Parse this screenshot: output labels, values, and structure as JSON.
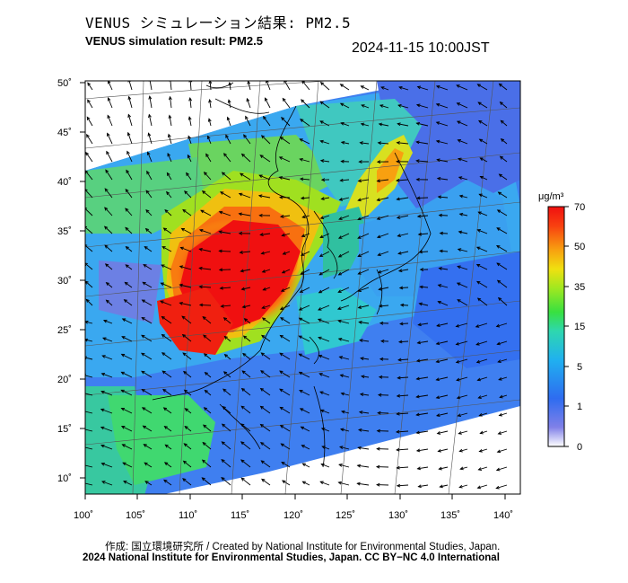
{
  "header": {
    "title_jp": "VENUS シミュレーション結果: PM2.5",
    "title_en": "VENUS simulation result: PM2.5",
    "timestamp": "2024-11-15 10:00JST"
  },
  "map": {
    "lon_labels": [
      "100˚",
      "105˚",
      "110˚",
      "115˚",
      "120˚",
      "125˚",
      "130˚",
      "135˚",
      "140˚"
    ],
    "lat_labels": [
      "50˚",
      "45˚",
      "40˚",
      "35˚",
      "30˚",
      "25˚",
      "20˚",
      "15˚",
      "10˚"
    ],
    "lon_range": [
      100,
      141
    ],
    "lat_range": [
      9,
      51
    ],
    "wind_field": "vectors"
  },
  "colorbar": {
    "unit": "μg/m³",
    "ticks": [
      "70",
      "50",
      "35",
      "15",
      "5",
      "1",
      "0"
    ],
    "colors": [
      "#ffffff",
      "#6a6ae0",
      "#2e6cf0",
      "#20b0f0",
      "#2ed7b0",
      "#38e040",
      "#a0e820",
      "#f0e010",
      "#f8a010",
      "#f84010",
      "#f01010"
    ]
  },
  "footer": {
    "credit": "作成: 国立環境研究所 / Created by National Institute for Environmental Studies, Japan.",
    "copyright": "2024 National Institute for Environmental Studies, Japan. CC BY−NC 4.0 International"
  }
}
